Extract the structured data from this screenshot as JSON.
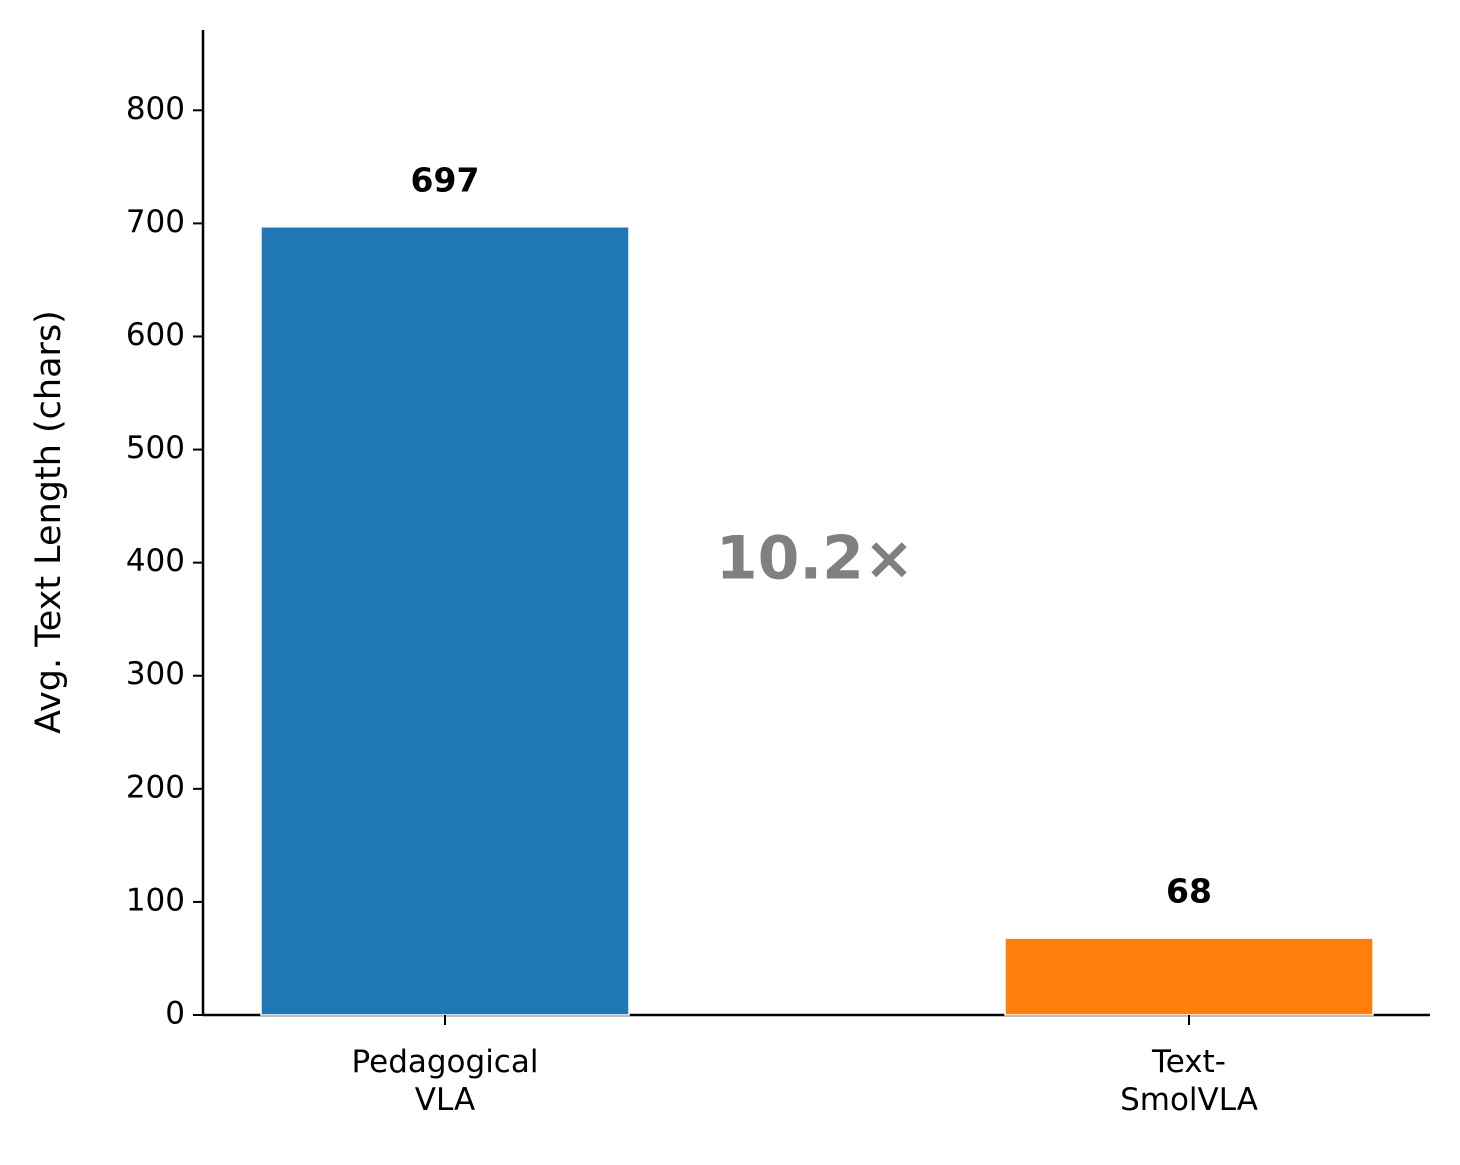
{
  "chart_data": {
    "type": "bar",
    "y_label": "Avg. Text Length (chars)",
    "annotation": "10.2×",
    "categories": [
      "Pedagogical\nVLA",
      "Text-\nSmolVLA"
    ],
    "values": [
      697,
      68
    ],
    "colors": [
      "#1f77b4",
      "#ff7f0e"
    ],
    "ylim": [
      0,
      871
    ],
    "yticks": [
      0,
      100,
      200,
      300,
      400,
      500,
      600,
      700,
      800
    ],
    "grid": false
  }
}
